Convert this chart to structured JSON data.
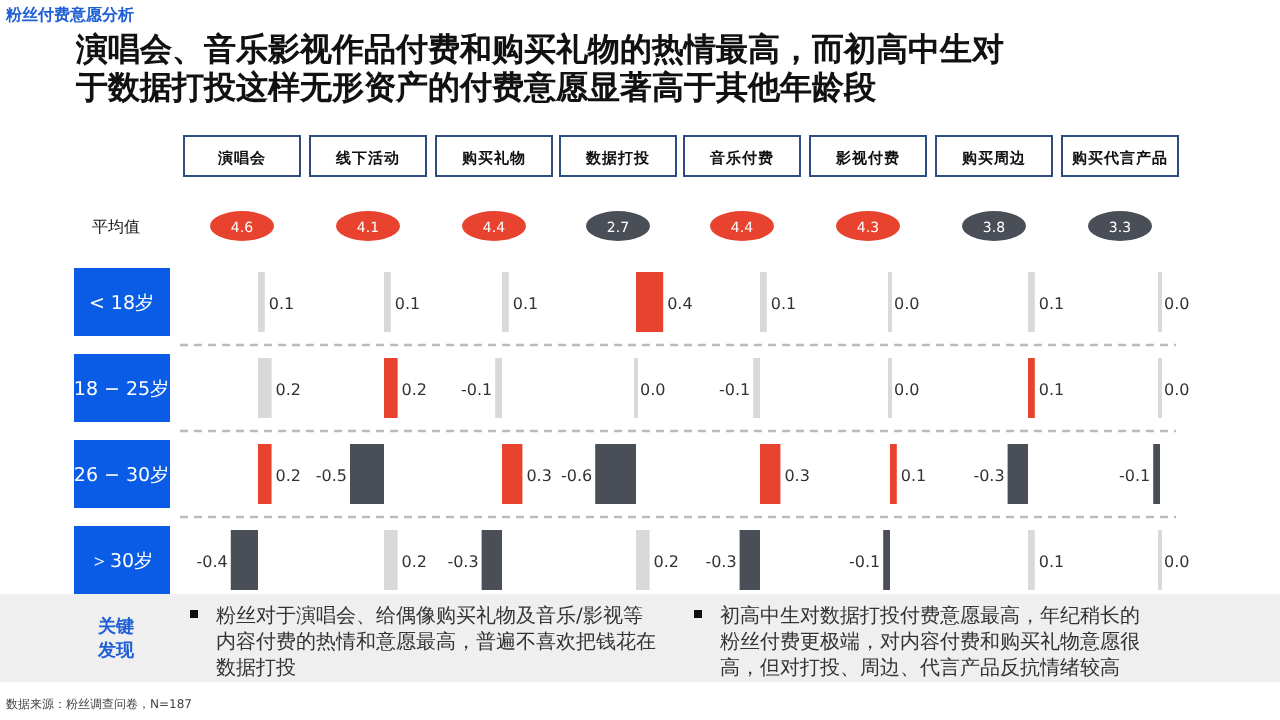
{
  "chart_data": [
    {
      "type": "other",
      "title": "演唱会、音乐影视作品付费和购买礼物的热情最高，而初高中生对于数据打投这样无形资产的付费意愿显著高于其他年龄段",
      "subtitle": "粉丝付费意愿分析",
      "ylabel": "平均值",
      "categories": [
        null,
        null,
        null,
        null,
        null,
        null,
        null,
        null
      ],
      "values": [
        4.6,
        4.1,
        4.4,
        2.7,
        4.4,
        4.3,
        3.8,
        3.3
      ],
      "value_labels": [
        "4.6",
        "4.1",
        "4.4",
        "2.7",
        "4.4",
        "4.3",
        "3.8",
        "3.3"
      ],
      "colors": [
        "#e8432e",
        "#e8432e",
        "#e8432e",
        "#4a4e57",
        "#e8432e",
        "#e8432e",
        "#4a4e57",
        "#4a4e57"
      ],
      "annotations": [
        "关键发现",
        "粉丝对于演唱会、给偶像购买礼物及音乐/影视等内容付费的热情和意愿最高，普遍不喜欢把钱花在数据打投",
        "初高中生对数据打投付费意愿最高，年纪稍长的粉丝付费更极端，对内容付费和购买礼物意愿很高，但对打投、周边、代言产品反抗情绪较高",
        "数据来源：粉丝调查问卷，N=187"
      ]
    },
    {
      "type": "bar",
      "title": "演唱会",
      "orientation": "horizontal",
      "tick_labels": "y",
      "categories": [
        "< 18岁",
        "18 − 25岁",
        "26 − 30岁",
        "＞30岁"
      ],
      "values": [
        0.1,
        0.2,
        0.2,
        -0.4
      ],
      "value_labels": [
        "0.1",
        "0.2",
        "0.2",
        "-0.4"
      ],
      "colors": [
        "#d9d9d9",
        "#d9d9d9",
        "#e8432e",
        "#4a4e57"
      ]
    },
    {
      "type": "bar",
      "orientation": "horizontal",
      "tick_labels": false,
      "categories": [
        null,
        null,
        null,
        null
      ],
      "title": "线下活动",
      "values": [
        0.1,
        0.2,
        -0.5,
        0.2
      ],
      "value_labels": [
        "0.1",
        "0.2",
        "-0.5",
        "0.2"
      ],
      "colors": [
        "#d9d9d9",
        "#e8432e",
        "#4a4e57",
        "#d9d9d9"
      ]
    },
    {
      "type": "bar",
      "orientation": "horizontal",
      "tick_labels": false,
      "categories": [
        null,
        null,
        null,
        null
      ],
      "title": "购买礼物",
      "values": [
        0.1,
        -0.1,
        0.3,
        -0.3
      ],
      "value_labels": [
        "0.1",
        "-0.1",
        "0.3",
        "-0.3"
      ],
      "colors": [
        "#d9d9d9",
        "#d9d9d9",
        "#e8432e",
        "#4a4e57"
      ]
    },
    {
      "type": "bar",
      "orientation": "horizontal",
      "tick_labels": false,
      "categories": [
        null,
        null,
        null,
        null
      ],
      "title": "数据打投",
      "values": [
        0.4,
        0.0,
        -0.6,
        0.2
      ],
      "value_labels": [
        "0.4",
        "0.0",
        "-0.6",
        "0.2"
      ],
      "colors": [
        "#e8432e",
        "#d9d9d9",
        "#4a4e57",
        "#d9d9d9"
      ]
    },
    {
      "type": "bar",
      "orientation": "horizontal",
      "tick_labels": false,
      "categories": [
        null,
        null,
        null,
        null
      ],
      "title": "音乐付费",
      "values": [
        0.1,
        -0.1,
        0.3,
        -0.3
      ],
      "value_labels": [
        "0.1",
        "-0.1",
        "0.3",
        "-0.3"
      ],
      "colors": [
        "#d9d9d9",
        "#d9d9d9",
        "#e8432e",
        "#4a4e57"
      ]
    },
    {
      "type": "bar",
      "orientation": "horizontal",
      "tick_labels": false,
      "categories": [
        null,
        null,
        null,
        null
      ],
      "title": "影视付费",
      "values": [
        0.0,
        0.0,
        0.1,
        -0.1
      ],
      "value_labels": [
        "0.0",
        "0.0",
        "0.1",
        "-0.1"
      ],
      "colors": [
        "#d9d9d9",
        "#d9d9d9",
        "#e8432e",
        "#4a4e57"
      ]
    },
    {
      "type": "bar",
      "orientation": "horizontal",
      "tick_labels": false,
      "categories": [
        null,
        null,
        null,
        null
      ],
      "title": "购买周边",
      "values": [
        0.1,
        0.1,
        -0.3,
        0.1
      ],
      "value_labels": [
        "0.1",
        "0.1",
        "-0.3",
        "0.1"
      ],
      "colors": [
        "#d9d9d9",
        "#e8432e",
        "#4a4e57",
        "#d9d9d9"
      ]
    },
    {
      "type": "bar",
      "orientation": "horizontal",
      "tick_labels": false,
      "categories": [
        null,
        null,
        null,
        null
      ],
      "title": "购买代言产品",
      "values": [
        0.0,
        0.0,
        -0.1,
        0.0
      ],
      "value_labels": [
        "0.0",
        "0.0",
        "-0.1",
        "0.0"
      ],
      "colors": [
        "#d9d9d9",
        "#d9d9d9",
        "#4a4e57",
        "#d9d9d9"
      ]
    }
  ]
}
